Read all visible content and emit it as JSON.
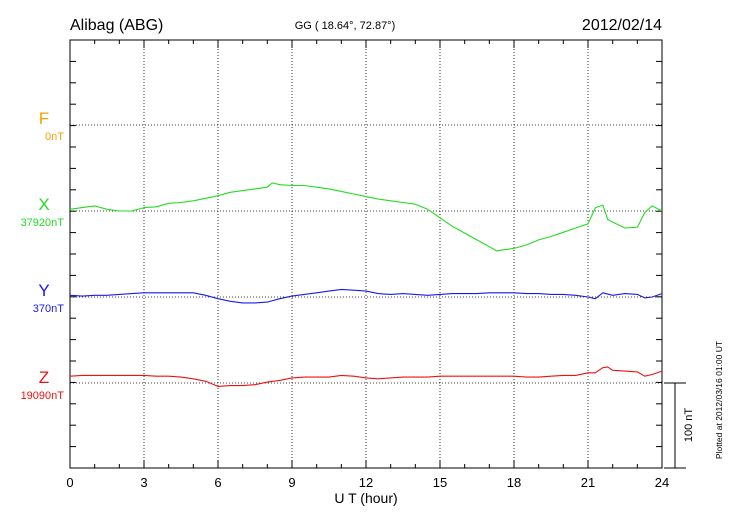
{
  "header": {
    "station": "Alibag (ABG)",
    "coords": "GG ( 18.64°,  72.87°)",
    "date": "2012/02/14"
  },
  "side_note": "Plotted at 2012/03/16 01:00 UT",
  "scale_label": "100 nT",
  "colors": {
    "F": "#f5a300",
    "X": "#22dd22",
    "Y": "#1a1aee",
    "Z": "#ee1111",
    "axis": "#000000"
  },
  "chart_data": {
    "type": "line",
    "xlabel": "U T (hour)",
    "xlim": [
      0,
      24
    ],
    "x_ticks": [
      "0",
      "3",
      "6",
      "9",
      "12",
      "15",
      "18",
      "21",
      "24"
    ],
    "scale_nT": 100,
    "series": [
      {
        "name": "F",
        "baseline_label": "0nT",
        "x": [],
        "y": []
      },
      {
        "name": "X",
        "baseline_label": "37920nT",
        "x": [
          0,
          0.5,
          1,
          1.5,
          2,
          2.5,
          3,
          3.5,
          4,
          4.5,
          5,
          5.5,
          6,
          6.5,
          7,
          7.5,
          8,
          8.2,
          8.5,
          9,
          9.5,
          10,
          10.5,
          11,
          11.5,
          12,
          12.5,
          13,
          13.5,
          14,
          14.5,
          15,
          15.5,
          16,
          16.5,
          17,
          17.3,
          17.5,
          18,
          18.5,
          19,
          19.5,
          20,
          20.5,
          21,
          21.3,
          21.6,
          21.8,
          22,
          22.5,
          23,
          23.3,
          23.6,
          24
        ],
        "y": [
          2,
          4,
          6,
          2,
          0,
          0,
          4,
          5,
          9,
          10,
          12,
          15,
          18,
          22,
          24,
          26,
          28,
          33,
          31,
          30,
          30,
          28,
          26,
          23,
          20,
          17,
          14,
          12,
          10,
          8,
          2,
          -8,
          -18,
          -26,
          -34,
          -42,
          -47,
          -46,
          -44,
          -40,
          -34,
          -30,
          -25,
          -20,
          -15,
          4,
          7,
          -10,
          -13,
          -20,
          -19,
          -2,
          6,
          0
        ]
      },
      {
        "name": "Y",
        "baseline_label": "370nT",
        "x": [
          0,
          0.5,
          1,
          1.5,
          2,
          2.5,
          3,
          3.5,
          4,
          4.5,
          5,
          5.5,
          6,
          6.5,
          7,
          7.5,
          8,
          8.5,
          9,
          9.5,
          10,
          10.5,
          11,
          11.5,
          12,
          12.5,
          13,
          13.5,
          14,
          14.5,
          15,
          15.5,
          16,
          16.5,
          17,
          17.5,
          18,
          18.5,
          19,
          19.5,
          20,
          20.5,
          21,
          21.3,
          21.6,
          22,
          22.5,
          23,
          23.3,
          23.6,
          24
        ],
        "y": [
          2,
          1,
          2,
          2,
          3,
          4,
          5,
          5,
          5,
          5,
          5,
          2,
          -2,
          -5,
          -7,
          -7,
          -6,
          -2,
          1,
          3,
          5,
          7,
          9,
          8,
          7,
          4,
          3,
          4,
          3,
          2,
          3,
          4,
          4,
          4,
          5,
          5,
          5,
          4,
          4,
          3,
          3,
          2,
          0,
          -2,
          5,
          2,
          4,
          3,
          -1,
          0,
          4
        ]
      },
      {
        "name": "Z",
        "baseline_label": "19090nT",
        "x": [
          0,
          0.5,
          1,
          1.5,
          2,
          2.5,
          3,
          3.5,
          4,
          4.5,
          5,
          5.5,
          6,
          6.5,
          7,
          7.5,
          8,
          8.5,
          9,
          9.5,
          10,
          10.5,
          11,
          11.5,
          12,
          12.5,
          13,
          13.5,
          14,
          14.5,
          15,
          15.5,
          16,
          16.5,
          17,
          17.5,
          18,
          18.5,
          19,
          19.5,
          20,
          20.5,
          21,
          21.3,
          21.6,
          21.8,
          22,
          22.5,
          23,
          23.3,
          23.6,
          24
        ],
        "y": [
          8,
          9,
          9,
          9,
          9,
          9,
          9,
          8,
          8,
          7,
          5,
          2,
          -4,
          -3,
          -3,
          -2,
          1,
          3,
          6,
          7,
          7,
          7,
          9,
          8,
          6,
          5,
          6,
          7,
          7,
          7,
          8,
          8,
          8,
          8,
          8,
          8,
          8,
          7,
          7,
          8,
          9,
          9,
          12,
          12,
          18,
          19,
          15,
          14,
          13,
          8,
          10,
          14
        ]
      }
    ]
  }
}
